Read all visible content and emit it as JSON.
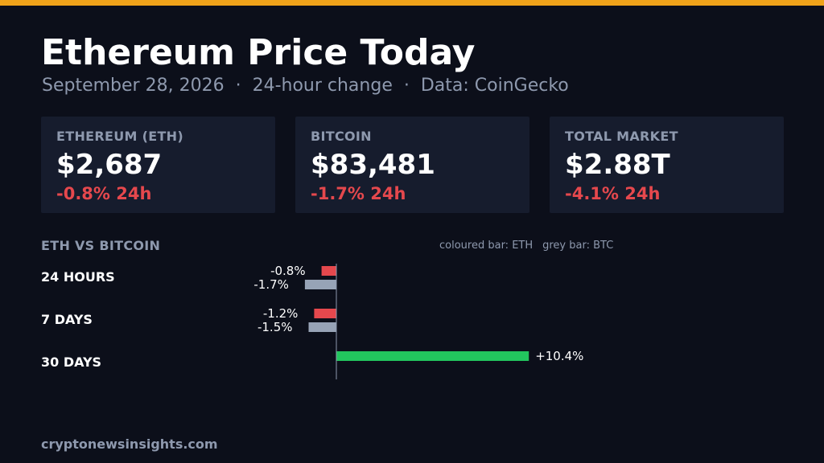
{
  "header": {
    "title": "Ethereum Price Today",
    "date": "September 28, 2026",
    "period": "24-hour change",
    "source": "Data: CoinGecko",
    "separator": "·"
  },
  "cards": [
    {
      "label": "ETHEREUM (ETH)",
      "value": "$2,687",
      "change": "-0.8% 24h"
    },
    {
      "label": "BITCOIN",
      "value": "$83,481",
      "change": "-1.7% 24h"
    },
    {
      "label": "TOTAL MARKET",
      "value": "$2.88T",
      "change": "-4.1% 24h"
    }
  ],
  "comparison": {
    "title": "ETH VS BITCOIN",
    "legend_eth": "coloured bar: ETH",
    "legend_btc": "grey bar: BTC"
  },
  "colors": {
    "accent": "#f0a31a",
    "negative": "#e5484d",
    "positive": "#22c55e",
    "btc_bar": "#97a3b6"
  },
  "chart_data": {
    "type": "bar",
    "orientation": "horizontal",
    "categories": [
      "24 HOURS",
      "7 DAYS",
      "30 DAYS"
    ],
    "series": [
      {
        "name": "ETH",
        "values": [
          -0.8,
          -1.2,
          10.4
        ],
        "labels": [
          "-0.8%",
          "-1.2%",
          "+10.4%"
        ]
      },
      {
        "name": "BTC",
        "values": [
          -1.7,
          -1.5,
          null
        ],
        "labels": [
          "-1.7%",
          "-1.5%",
          ""
        ]
      }
    ],
    "unit": "%"
  },
  "footer": {
    "site": "cryptonewsinsights.com"
  }
}
